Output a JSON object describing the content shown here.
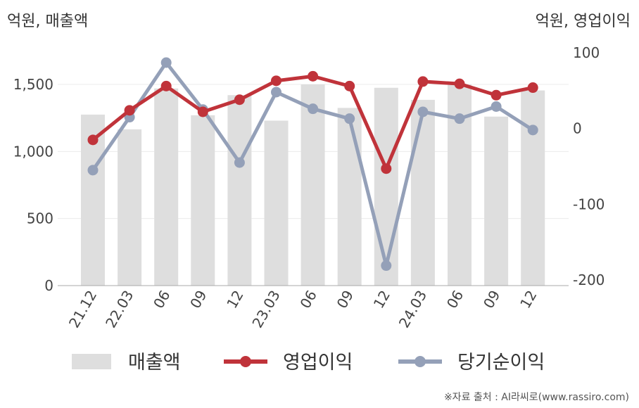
{
  "unit_left": "억원, 매출액",
  "unit_right": "억원, 영업이익",
  "source": "※자료 출처 : AI라씨로(www.rassiro.com)",
  "colors": {
    "bar": "#dedede",
    "op": "#c0333a",
    "net": "#94a0b8",
    "grid": "#ececec",
    "axis": "#aaaaaa"
  },
  "chart_data": {
    "type": "bar",
    "categories": [
      "21.12",
      "22.03",
      "06",
      "09",
      "12",
      "23.03",
      "06",
      "09",
      "12",
      "24.03",
      "06",
      "09",
      "12"
    ],
    "left_axis": {
      "min": 0,
      "max": 1500,
      "ticks": [
        0,
        500,
        1000,
        1500
      ],
      "tick_labels": [
        "0",
        "500",
        "1,000",
        "1,500"
      ]
    },
    "right_axis": {
      "min": -200,
      "max": 100,
      "ticks": [
        -200,
        -100,
        0,
        100
      ],
      "tick_labels": [
        "-200",
        "-100",
        "0",
        "100"
      ]
    },
    "series": [
      {
        "name": "매출액",
        "type": "bar",
        "axis": "left",
        "values": [
          1275,
          1165,
          1470,
          1270,
          1420,
          1230,
          1500,
          1325,
          1475,
          1385,
          1500,
          1260,
          1455
        ]
      },
      {
        "name": "영업이익",
        "type": "line",
        "axis": "right",
        "values": [
          -15,
          24,
          56,
          22,
          38,
          63,
          69,
          56,
          -53,
          62,
          59,
          44,
          54
        ]
      },
      {
        "name": "당기순이익",
        "type": "line",
        "axis": "right",
        "values": [
          -55,
          15,
          87,
          25,
          -45,
          48,
          26,
          13,
          -181,
          22,
          13,
          29,
          -2
        ]
      }
    ],
    "legend": [
      "매출액",
      "영업이익",
      "당기순이익"
    ],
    "legend_position": "bottom"
  }
}
